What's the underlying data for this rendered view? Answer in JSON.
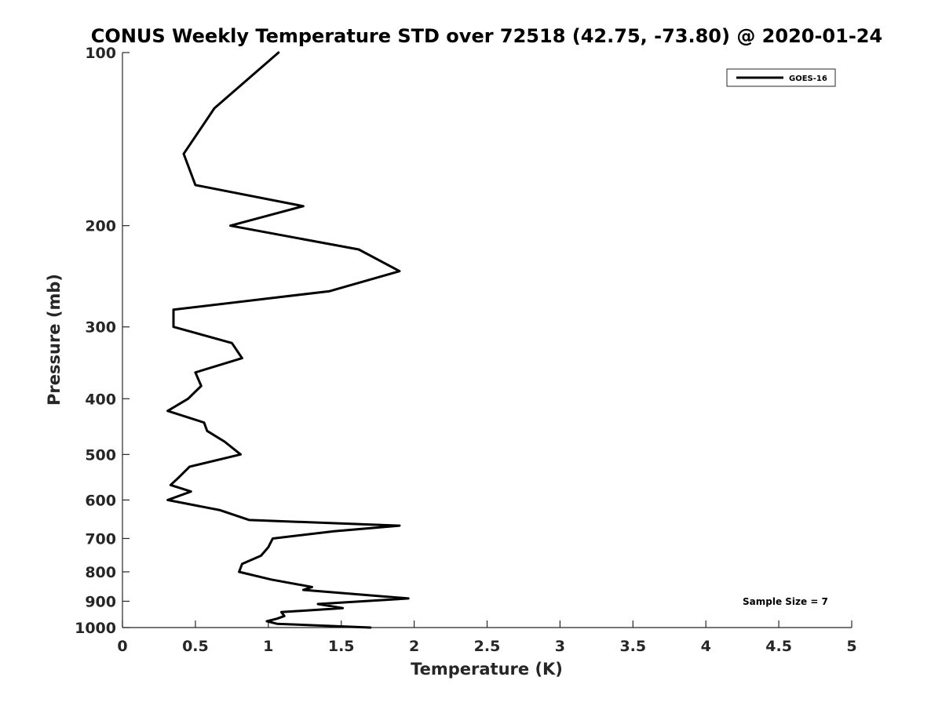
{
  "chart_data": {
    "type": "line",
    "title": "CONUS Weekly Temperature STD over 72518 (42.75, -73.80) @ 2020-01-24",
    "xlabel": "Temperature (K)",
    "ylabel": "Pressure (mb)",
    "xlim": [
      0,
      5
    ],
    "ylim": [
      100,
      1000
    ],
    "y_scale": "log",
    "y_reversed": true,
    "x_ticks": [
      "0",
      "0.5",
      "1",
      "1.5",
      "2",
      "2.5",
      "3",
      "3.5",
      "4",
      "4.5",
      "5"
    ],
    "y_ticks": [
      "100",
      "200",
      "300",
      "400",
      "500",
      "600",
      "700",
      "800",
      "900",
      "1000"
    ],
    "grid": false,
    "legend_position": "top-right",
    "annotation": "Sample Size = 7",
    "series": [
      {
        "name": "GOES-16",
        "color": "#000000",
        "points": [
          [
            1.07,
            100
          ],
          [
            0.63,
            125
          ],
          [
            0.42,
            150
          ],
          [
            0.5,
            170
          ],
          [
            1.24,
            185
          ],
          [
            0.74,
            200
          ],
          [
            1.62,
            220
          ],
          [
            1.9,
            240
          ],
          [
            1.42,
            260
          ],
          [
            0.35,
            280
          ],
          [
            0.35,
            300
          ],
          [
            0.75,
            320
          ],
          [
            0.82,
            340
          ],
          [
            0.5,
            360
          ],
          [
            0.54,
            380
          ],
          [
            0.45,
            400
          ],
          [
            0.31,
            420
          ],
          [
            0.56,
            440
          ],
          [
            0.58,
            455
          ],
          [
            0.7,
            475
          ],
          [
            0.81,
            500
          ],
          [
            0.46,
            525
          ],
          [
            0.38,
            550
          ],
          [
            0.33,
            565
          ],
          [
            0.47,
            580
          ],
          [
            0.31,
            600
          ],
          [
            0.67,
            625
          ],
          [
            0.87,
            650
          ],
          [
            1.9,
            665
          ],
          [
            1.45,
            680
          ],
          [
            1.03,
            700
          ],
          [
            1.0,
            725
          ],
          [
            0.95,
            750
          ],
          [
            0.82,
            775
          ],
          [
            0.8,
            800
          ],
          [
            1.02,
            825
          ],
          [
            1.3,
            850
          ],
          [
            1.24,
            860
          ],
          [
            1.96,
            890
          ],
          [
            1.34,
            910
          ],
          [
            1.51,
            925
          ],
          [
            1.09,
            940
          ],
          [
            1.11,
            955
          ],
          [
            1.06,
            965
          ],
          [
            0.99,
            975
          ],
          [
            1.06,
            985
          ],
          [
            1.7,
            1000
          ]
        ]
      }
    ]
  }
}
